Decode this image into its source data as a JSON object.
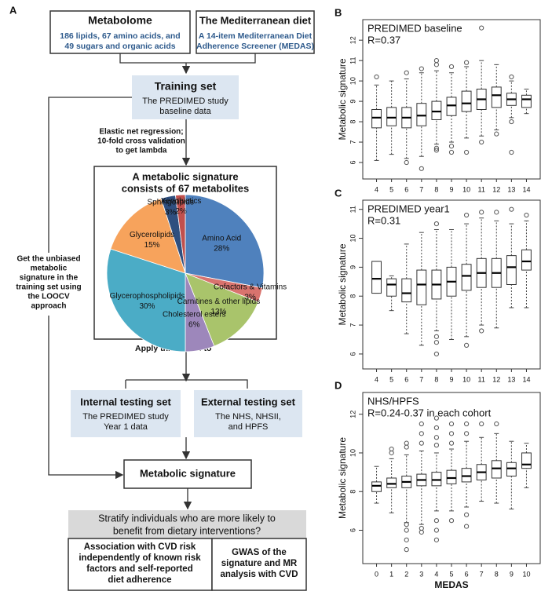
{
  "diagram": {
    "panel_label": "A",
    "metabolome": {
      "title": "Metabolome",
      "lines": [
        "186 lipids, 67 amino acids, and",
        "49 sugars and organic acids"
      ]
    },
    "diet": {
      "title": "The Mediterranean diet",
      "lines": [
        "A 14-item Mediterranean Diet",
        "Adherence Screener (MEDAS)"
      ]
    },
    "training": {
      "title": "Training set",
      "lines": [
        "The PREDIMED study",
        "baseline data"
      ]
    },
    "method": [
      "Elastic net regression;",
      "10-fold cross validation",
      "to get lambda"
    ],
    "loocv": [
      "Get the unbiased",
      "metabolic",
      "signature in the",
      "training set using",
      "the LOOCV",
      "approach"
    ],
    "apply": "Apply this model to",
    "internal": {
      "title": "Internal testing set",
      "lines": [
        "The PREDIMED study",
        "Year 1 data"
      ]
    },
    "external": {
      "title": "External testing set",
      "lines": [
        "The NHS, NHSII,",
        "and HPFS"
      ]
    },
    "signature": "Metabolic signature",
    "question": [
      "Stratify individuals who are more likely to",
      "benefit from dietary interventions?"
    ],
    "outcome1": [
      "Association with CVD risk",
      "independently of known risk",
      "factors and self-reported",
      "diet adherence"
    ],
    "outcome2": [
      "GWAS of the",
      "signature and MR",
      "analysis with CVD"
    ]
  },
  "chart_data": [
    {
      "type": "pie",
      "title": [
        "A metabolic signature",
        "consists of 67 metabolites"
      ],
      "categories": [
        "Amino Acid",
        "Cofactors & Vitamins",
        "Carnitines & other lipids",
        "Cholesterol esters",
        "Glycerophospholipids",
        "Glycerolipids",
        "Sphingolipids",
        "Xenobiotics"
      ],
      "values": [
        28,
        3,
        13,
        6,
        30,
        15,
        3,
        2
      ],
      "value_labels": [
        "28%",
        "3%",
        "13%",
        "6%",
        "30%",
        "15%",
        "3%",
        "2%"
      ],
      "colors": [
        "#4f81bd",
        "#d9736e",
        "#a9c46b",
        "#9d87bb",
        "#4bacc6",
        "#f7a35c",
        "#2f4f7f",
        "#c0504d"
      ]
    },
    {
      "type": "boxplot",
      "panel_label": "B",
      "title": "PREDIMED baseline",
      "subtitle": "R=0.37",
      "ylabel": "Metabolic signature",
      "categories": [
        "4",
        "5",
        "6",
        "7",
        "8",
        "9",
        "10",
        "11",
        "12",
        "13",
        "14"
      ],
      "ylim": [
        5.5,
        12.7
      ],
      "yticks": [
        6,
        7,
        8,
        9,
        10,
        11,
        12
      ],
      "boxes": [
        {
          "low": 6.1,
          "q1": 7.7,
          "median": 8.2,
          "q3": 8.6,
          "high": 9.8,
          "outliers": [
            10.2
          ]
        },
        {
          "low": 6.4,
          "q1": 7.8,
          "median": 8.2,
          "q3": 8.7,
          "high": 10.0,
          "outliers": []
        },
        {
          "low": 6.2,
          "q1": 7.7,
          "median": 8.2,
          "q3": 8.7,
          "high": 10.1,
          "outliers": [
            6.0,
            10.4
          ]
        },
        {
          "low": 6.3,
          "q1": 7.8,
          "median": 8.3,
          "q3": 8.9,
          "high": 10.4,
          "outliers": [
            5.7,
            10.6
          ]
        },
        {
          "low": 6.9,
          "q1": 8.1,
          "median": 8.5,
          "q3": 9.0,
          "high": 10.5,
          "outliers": [
            6.6,
            6.7,
            10.8,
            11.0
          ]
        },
        {
          "low": 7.0,
          "q1": 8.3,
          "median": 8.8,
          "q3": 9.2,
          "high": 10.4,
          "outliers": [
            6.5,
            6.8,
            10.7
          ]
        },
        {
          "low": 7.2,
          "q1": 8.5,
          "median": 8.9,
          "q3": 9.5,
          "high": 10.7,
          "outliers": [
            6.5,
            10.9
          ]
        },
        {
          "low": 7.3,
          "q1": 8.6,
          "median": 9.1,
          "q3": 9.6,
          "high": 11.0,
          "outliers": [
            7.0,
            12.6
          ]
        },
        {
          "low": 7.6,
          "q1": 8.7,
          "median": 9.3,
          "q3": 9.7,
          "high": 10.8,
          "outliers": [
            7.4
          ]
        },
        {
          "low": 8.2,
          "q1": 8.8,
          "median": 9.1,
          "q3": 9.4,
          "high": 10.0,
          "outliers": [
            6.5,
            8.0,
            10.2
          ]
        },
        {
          "low": 8.4,
          "q1": 8.7,
          "median": 9.1,
          "q3": 9.3,
          "high": 9.6,
          "outliers": []
        }
      ]
    },
    {
      "type": "boxplot",
      "panel_label": "C",
      "title": "PREDIMED year1",
      "subtitle": "R=0.31",
      "ylabel": "Metabolic signature",
      "categories": [
        "4",
        "5",
        "6",
        "7",
        "8",
        "9",
        "10",
        "11",
        "12",
        "13",
        "14"
      ],
      "ylim": [
        5.7,
        11.1
      ],
      "yticks": [
        6,
        7,
        8,
        9,
        10,
        11
      ],
      "boxes": [
        {
          "low": 8.1,
          "q1": 8.1,
          "median": 8.6,
          "q3": 9.2,
          "high": 9.2,
          "outliers": []
        },
        {
          "low": 7.5,
          "q1": 8.0,
          "median": 8.4,
          "q3": 8.6,
          "high": 8.7,
          "outliers": []
        },
        {
          "low": 6.7,
          "q1": 7.8,
          "median": 8.1,
          "q3": 8.6,
          "high": 9.8,
          "outliers": []
        },
        {
          "low": 6.3,
          "q1": 7.7,
          "median": 8.4,
          "q3": 8.9,
          "high": 10.2,
          "outliers": []
        },
        {
          "low": 6.8,
          "q1": 7.9,
          "median": 8.4,
          "q3": 8.9,
          "high": 10.3,
          "outliers": [
            6.0,
            6.4,
            6.6,
            10.5
          ]
        },
        {
          "low": 6.5,
          "q1": 8.0,
          "median": 8.5,
          "q3": 9.0,
          "high": 10.3,
          "outliers": []
        },
        {
          "low": 6.6,
          "q1": 8.2,
          "median": 8.7,
          "q3": 9.1,
          "high": 10.5,
          "outliers": [
            6.3,
            10.8
          ]
        },
        {
          "low": 7.0,
          "q1": 8.3,
          "median": 8.8,
          "q3": 9.3,
          "high": 10.7,
          "outliers": [
            6.8,
            10.9
          ]
        },
        {
          "low": 6.9,
          "q1": 8.3,
          "median": 8.8,
          "q3": 9.3,
          "high": 10.6,
          "outliers": [
            10.9
          ]
        },
        {
          "low": 7.6,
          "q1": 8.4,
          "median": 9.0,
          "q3": 9.4,
          "high": 10.5,
          "outliers": [
            11.0
          ]
        },
        {
          "low": 7.6,
          "q1": 8.9,
          "median": 9.2,
          "q3": 9.6,
          "high": 10.6,
          "outliers": [
            10.8
          ]
        }
      ]
    },
    {
      "type": "boxplot",
      "panel_label": "D",
      "title": "NHS/HPFS",
      "subtitle": "R=0.24-0.37 in each cohort",
      "ylabel": "Metabolic signature",
      "xlabel": "MEDAS",
      "categories": [
        "0",
        "1",
        "2",
        "3",
        "4",
        "5",
        "6",
        "7",
        "8",
        "9",
        "10"
      ],
      "ylim": [
        4.6,
        12.8
      ],
      "yticks": [
        6,
        8,
        10,
        12
      ],
      "boxes": [
        {
          "low": 7.4,
          "q1": 8.0,
          "median": 8.3,
          "q3": 8.5,
          "high": 9.3,
          "outliers": []
        },
        {
          "low": 6.9,
          "q1": 8.2,
          "median": 8.4,
          "q3": 8.7,
          "high": 9.7,
          "outliers": [
            10.0,
            10.2
          ]
        },
        {
          "low": 6.4,
          "q1": 8.2,
          "median": 8.5,
          "q3": 8.8,
          "high": 9.9,
          "outliers": [
            5.0,
            5.5,
            6.0,
            6.3,
            10.3,
            10.5
          ]
        },
        {
          "low": 6.3,
          "q1": 8.3,
          "median": 8.6,
          "q3": 8.9,
          "high": 10.1,
          "outliers": [
            5.9,
            6.1,
            10.5,
            11.0,
            11.5
          ]
        },
        {
          "low": 7.0,
          "q1": 8.3,
          "median": 8.6,
          "q3": 9.0,
          "high": 10.0,
          "outliers": [
            5.5,
            6.0,
            6.5,
            10.4,
            10.8,
            11.3,
            11.8
          ]
        },
        {
          "low": 7.0,
          "q1": 8.4,
          "median": 8.7,
          "q3": 9.1,
          "high": 10.2,
          "outliers": [
            6.5,
            10.5,
            11.0,
            11.5
          ]
        },
        {
          "low": 7.2,
          "q1": 8.5,
          "median": 8.8,
          "q3": 9.2,
          "high": 10.6,
          "outliers": [
            6.2,
            6.8,
            11.0,
            11.5
          ]
        },
        {
          "low": 7.5,
          "q1": 8.6,
          "median": 9.0,
          "q3": 9.4,
          "high": 10.8,
          "outliers": [
            11.5
          ]
        },
        {
          "low": 7.4,
          "q1": 8.7,
          "median": 9.2,
          "q3": 9.6,
          "high": 11.0,
          "outliers": [
            11.5
          ]
        },
        {
          "low": 7.1,
          "q1": 8.8,
          "median": 9.2,
          "q3": 9.5,
          "high": 10.6,
          "outliers": []
        },
        {
          "low": 8.2,
          "q1": 9.2,
          "median": 9.4,
          "q3": 10.0,
          "high": 10.5,
          "outliers": []
        }
      ]
    }
  ]
}
